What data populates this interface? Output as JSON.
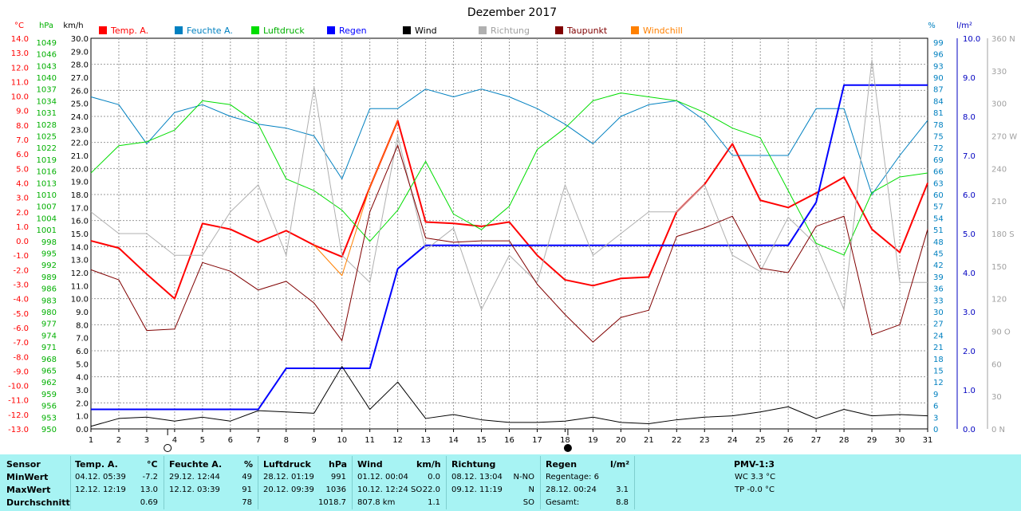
{
  "chart_data": {
    "type": "line",
    "title": "Dezember 2017",
    "x": [
      1,
      2,
      3,
      4,
      5,
      6,
      7,
      8,
      9,
      10,
      11,
      12,
      13,
      14,
      15,
      16,
      17,
      18,
      19,
      20,
      21,
      22,
      23,
      24,
      25,
      26,
      27,
      28,
      29,
      30,
      31
    ],
    "x_ticks": [
      "1",
      "2",
      "3",
      "4",
      "5",
      "6",
      "7",
      "8",
      "9",
      "10",
      "11",
      "12",
      "13",
      "14",
      "15",
      "16",
      "17",
      "18",
      "19",
      "20",
      "21",
      "22",
      "23",
      "24",
      "25",
      "26",
      "27",
      "28",
      "29",
      "30",
      "31"
    ],
    "grid": true,
    "legend_position": "top",
    "axes": {
      "temp": {
        "unit": "°C",
        "range": [
          -13,
          14
        ],
        "ticks": [
          "14.0",
          "13.0",
          "12.0",
          "11.0",
          "10.0",
          "9.0",
          "8.0",
          "7.0",
          "6.0",
          "5.0",
          "4.0",
          "3.0",
          "2.0",
          "1.0",
          "0.0",
          "-1.0",
          "-2.0",
          "-3.0",
          "-4.0",
          "-5.0",
          "-6.0",
          "-7.0",
          "-8.0",
          "-9.0",
          "-10.0",
          "-11.0",
          "-12.0",
          "-13.0"
        ]
      },
      "pressure": {
        "unit": "hPa",
        "range": [
          950,
          1050
        ],
        "ticks": [
          "1049",
          "1046",
          "1043",
          "1040",
          "1037",
          "1034",
          "1031",
          "1028",
          "1025",
          "1022",
          "1019",
          "1016",
          "1013",
          "1010",
          "1007",
          "1004",
          "1001",
          "998",
          "995",
          "992",
          "989",
          "986",
          "983",
          "980",
          "977",
          "974",
          "971",
          "968",
          "965",
          "962",
          "959",
          "956",
          "953",
          "950"
        ]
      },
      "wind": {
        "unit": "km/h",
        "range": [
          0,
          30
        ],
        "ticks": [
          "30.0",
          "29.0",
          "28.0",
          "27.0",
          "26.0",
          "25.0",
          "24.0",
          "23.0",
          "22.0",
          "21.0",
          "20.0",
          "19.0",
          "18.0",
          "17.0",
          "16.0",
          "15.0",
          "14.0",
          "13.0",
          "12.0",
          "11.0",
          "10.0",
          "9.0",
          "8.0",
          "7.0",
          "6.0",
          "5.0",
          "4.0",
          "3.0",
          "2.0",
          "1.0",
          "0.0"
        ]
      },
      "humidity": {
        "unit": "%",
        "range": [
          0,
          100
        ],
        "ticks": [
          "99",
          "96",
          "93",
          "90",
          "87",
          "84",
          "81",
          "78",
          "75",
          "72",
          "69",
          "66",
          "63",
          "60",
          "57",
          "54",
          "51",
          "48",
          "45",
          "42",
          "39",
          "36",
          "33",
          "30",
          "27",
          "24",
          "21",
          "18",
          "15",
          "12",
          "9",
          "6",
          "3",
          "0"
        ]
      },
      "rain": {
        "unit": "l/m²",
        "range": [
          0,
          10
        ],
        "ticks": [
          "10.0",
          "9.0",
          "8.0",
          "7.0",
          "6.0",
          "5.0",
          "4.0",
          "3.0",
          "2.0",
          "1.0",
          "0.0"
        ]
      },
      "direction": {
        "unit": "",
        "range": [
          0,
          360
        ],
        "ticks": [
          "360 N",
          "330",
          "300",
          "270 W",
          "240",
          "210",
          "180 S",
          "150",
          "120",
          "90 O",
          "60",
          "30",
          "0 N"
        ]
      }
    },
    "series": [
      {
        "name": "Temp. A.",
        "color": "#ff0000",
        "axis": "temp",
        "width": 2,
        "values": [
          0.0,
          -0.5,
          -2.3,
          -4.0,
          1.2,
          0.8,
          -0.1,
          0.7,
          -0.3,
          -1.1,
          3.7,
          8.3,
          1.3,
          1.2,
          1.0,
          1.3,
          -1.0,
          -2.7,
          -3.1,
          -2.6,
          -2.5,
          2.0,
          3.9,
          6.7,
          2.8,
          2.3,
          3.3,
          4.4,
          0.8,
          -0.8,
          4.0
        ]
      },
      {
        "name": "Feuchte A.",
        "color": "#0080c0",
        "axis": "humidity",
        "width": 1,
        "values": [
          85,
          83,
          73,
          81,
          83,
          80,
          78,
          77,
          75,
          64,
          82,
          82,
          87,
          85,
          87,
          85,
          82,
          78,
          73,
          80,
          83,
          84,
          79,
          70,
          70,
          70,
          82,
          82,
          60,
          70,
          79
        ]
      },
      {
        "name": "Luftdruck",
        "color": "#00dd00",
        "axis": "pressure",
        "width": 1,
        "values": [
          1015.5,
          1022.5,
          1023.5,
          1026.5,
          1034,
          1033,
          1028,
          1014,
          1011,
          1006,
          998,
          1006,
          1018.5,
          1005,
          1001,
          1007,
          1021.5,
          1027,
          1034,
          1036,
          1035,
          1034,
          1031,
          1027,
          1024.5,
          1011,
          997.5,
          994.5,
          1010.5,
          1014.5,
          1015.5
        ]
      },
      {
        "name": "Regen",
        "color": "#0000ff",
        "axis": "rain",
        "width": 2,
        "stepped": true,
        "values": [
          0.5,
          0.5,
          0.5,
          0.5,
          0.5,
          0.5,
          0.5,
          1.55,
          1.55,
          1.55,
          1.55,
          4.1,
          4.7,
          4.7,
          4.7,
          4.7,
          4.7,
          4.7,
          4.7,
          4.7,
          4.7,
          4.7,
          4.7,
          4.7,
          4.7,
          4.7,
          5.8,
          8.8,
          8.8,
          8.8,
          8.8
        ]
      },
      {
        "name": "Wind",
        "color": "#000000",
        "axis": "wind",
        "width": 1,
        "values": [
          0.2,
          0.8,
          0.9,
          0.6,
          0.9,
          0.6,
          1.4,
          1.3,
          1.2,
          4.8,
          1.5,
          3.6,
          0.8,
          1.1,
          0.7,
          0.5,
          0.5,
          0.6,
          0.9,
          0.5,
          0.4,
          0.7,
          0.9,
          1.0,
          1.3,
          1.7,
          0.8,
          1.5,
          1.0,
          1.1,
          1.0
        ]
      },
      {
        "name": "Richtung",
        "color": "#b0b0b0",
        "axis": "direction",
        "width": 1,
        "values": [
          200,
          180,
          180,
          160,
          160,
          200,
          225,
          160,
          315,
          160,
          135,
          270,
          165,
          185,
          110,
          160,
          135,
          225,
          160,
          180,
          200,
          200,
          225,
          160,
          145,
          195,
          170,
          110,
          340,
          135,
          135
        ]
      },
      {
        "name": "Taupunkt",
        "color": "#800000",
        "axis": "temp",
        "width": 1,
        "values": [
          -2.0,
          -2.7,
          -6.2,
          -6.1,
          -1.5,
          -2.1,
          -3.4,
          -2.8,
          -4.3,
          -6.9,
          2.0,
          6.6,
          0.2,
          -0.1,
          0.0,
          0.0,
          -3.0,
          -5.1,
          -7.0,
          -5.3,
          -4.8,
          0.3,
          0.9,
          1.7,
          -1.9,
          -2.2,
          1.0,
          1.7,
          -6.5,
          -5.8,
          0.8
        ]
      },
      {
        "name": "Windchill",
        "color": "#ff8000",
        "axis": "temp",
        "width": 1,
        "values": [
          null,
          null,
          null,
          null,
          null,
          null,
          null,
          null,
          -0.3,
          -2.4,
          3.7,
          8.3,
          null,
          null,
          null,
          null,
          null,
          null,
          null,
          null,
          null,
          null,
          null,
          null,
          null,
          null,
          null,
          null,
          null,
          null,
          null
        ]
      }
    ],
    "moon_markers": [
      {
        "day": 3.75,
        "phase": "new-moon"
      },
      {
        "day": 18.1,
        "phase": "full-moon"
      }
    ]
  },
  "stats": {
    "columns": [
      {
        "title": "Sensor"
      },
      {
        "title": "Temp. A.",
        "unit": "°C"
      },
      {
        "title": "Feuchte A.",
        "unit": "%"
      },
      {
        "title": "Luftdruck",
        "unit": "hPa"
      },
      {
        "title": "Wind",
        "unit": "km/h"
      },
      {
        "title": "Richtung"
      },
      {
        "title": "Regen",
        "unit": "l/m²"
      },
      {
        "title": "PMV-1:3"
      }
    ],
    "row_labels": [
      "MinWert",
      "MaxWert",
      "Durchschnitt"
    ],
    "temp": {
      "min_time": "04.12.  05:39",
      "min": "-7.2",
      "max_time": "12.12.  12:19",
      "max": "13.0",
      "avg": "0.69"
    },
    "humidity": {
      "min_time": "29.12.  12:44",
      "min": "49",
      "max_time": "12.12.  03:39",
      "max": "91",
      "avg": "78"
    },
    "pressure": {
      "min_time": "28.12.  01:19",
      "min": "991",
      "max_time": "20.12.  09:39",
      "max": "1036",
      "avg": "1018.7"
    },
    "wind": {
      "min_time": "01.12.  00:04",
      "min": "0.0",
      "max_time": "10.12.  12:24 SO",
      "max": "22.0",
      "avg_total": "807.8 km",
      "avg": "1.1"
    },
    "direction": {
      "min_time": "08.12.  13:04",
      "min": "N-NO",
      "max_time": "09.12.  11:19",
      "max": "N",
      "avg": "SO"
    },
    "rain": {
      "row1": "Regentage: 6",
      "max_time": "28.12.  00:24",
      "max": "3.1",
      "total_label": "Gesamt:",
      "total": "8.8"
    },
    "pmv": {
      "wc": "WC 3.3 °C",
      "tp": "TP -0.0 °C"
    }
  }
}
